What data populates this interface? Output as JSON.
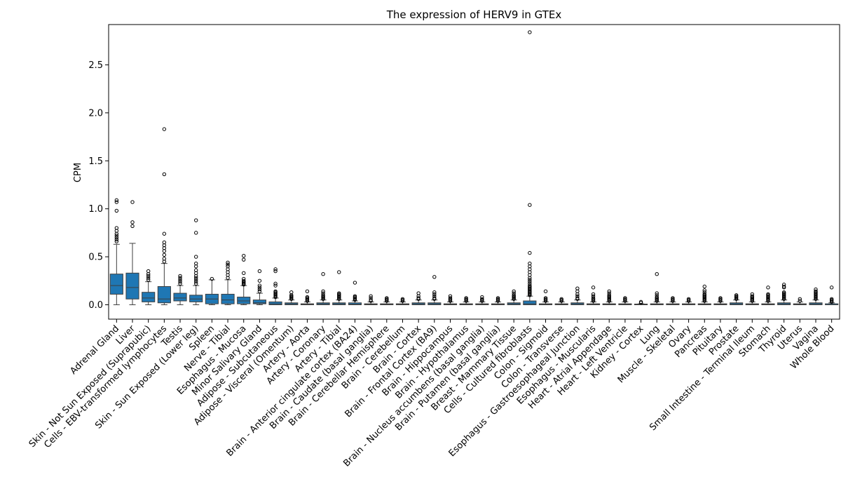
{
  "chart_data": {
    "type": "box",
    "title": "The expression of HERV9 in GTEx",
    "xlabel": "",
    "ylabel": "CPM",
    "ylim": [
      -0.15,
      2.92
    ],
    "yticks": [
      "0.0",
      "0.5",
      "1.0",
      "1.5",
      "2.0",
      "2.5"
    ],
    "yticks_values": [
      0.0,
      0.5,
      1.0,
      1.5,
      2.0,
      2.5
    ],
    "grid": false,
    "box_color": "#1f77b4",
    "categories": [
      "Adrenal Gland",
      "Liver",
      "Skin - Not Sun Exposed (Suprapubic)",
      "Cells - EBV-transformed lymphocytes",
      "Testis",
      "Skin - Sun Exposed (Lower leg)",
      "Spleen",
      "Nerve - Tibial",
      "Esophagus - Mucosa",
      "Minor Salivary Gland",
      "Adipose - Subcutaneous",
      "Adipose - Visceral (Omentum)",
      "Artery - Aorta",
      "Artery - Coronary",
      "Artery - Tibial",
      "Brain - Anterior cingulate cortex (BA24)",
      "Brain - Caudate (basal ganglia)",
      "Brain - Cerebellar Hemisphere",
      "Brain - Cerebellum",
      "Brain - Cortex",
      "Brain - Frontal Cortex (BA9)",
      "Brain - Hippocampus",
      "Brain - Hypothalamus",
      "Brain - Nucleus accumbens (basal ganglia)",
      "Brain - Putamen (basal ganglia)",
      "Breast - Mammary Tissue",
      "Cells - Cultured fibroblasts",
      "Colon - Sigmoid",
      "Colon - Transverse",
      "Esophagus - Gastroesophageal Junction",
      "Esophagus - Muscularis",
      "Heart - Atrial Appendage",
      "Heart - Left Ventricle",
      "Kidney - Cortex",
      "Lung",
      "Muscle - Skeletal",
      "Ovary",
      "Pancreas",
      "Pituitary",
      "Prostate",
      "Small Intestine - Terminal Ileum",
      "Stomach",
      "Thyroid",
      "Uterus",
      "Vagina",
      "Whole Blood"
    ],
    "boxes": [
      {
        "q1": 0.11,
        "median": 0.2,
        "q3": 0.32,
        "whislo": 0.0,
        "whishi": 0.63,
        "fliers": [
          0.66,
          0.68,
          0.7,
          0.72,
          0.74,
          0.77,
          0.8,
          0.98,
          1.07,
          1.09
        ]
      },
      {
        "q1": 0.06,
        "median": 0.18,
        "q3": 0.33,
        "whislo": 0.0,
        "whishi": 0.64,
        "fliers": [
          0.82,
          0.86,
          1.07
        ]
      },
      {
        "q1": 0.03,
        "median": 0.07,
        "q3": 0.13,
        "whislo": 0.0,
        "whishi": 0.24,
        "fliers": [
          0.26,
          0.28,
          0.3,
          0.32,
          0.35
        ]
      },
      {
        "q1": 0.02,
        "median": 0.06,
        "q3": 0.19,
        "whislo": 0.0,
        "whishi": 0.43,
        "fliers": [
          0.45,
          0.48,
          0.52,
          0.56,
          0.59,
          0.62,
          0.65,
          0.74,
          1.36,
          1.83
        ]
      },
      {
        "q1": 0.04,
        "median": 0.07,
        "q3": 0.12,
        "whislo": 0.0,
        "whishi": 0.2,
        "fliers": [
          0.22,
          0.24,
          0.26,
          0.28,
          0.3
        ]
      },
      {
        "q1": 0.03,
        "median": 0.06,
        "q3": 0.1,
        "whislo": 0.0,
        "whishi": 0.2,
        "fliers": [
          0.22,
          0.24,
          0.26,
          0.28,
          0.3,
          0.33,
          0.36,
          0.4,
          0.43,
          0.5,
          0.75,
          0.88
        ]
      },
      {
        "q1": 0.01,
        "median": 0.06,
        "q3": 0.11,
        "whislo": 0.0,
        "whishi": 0.26,
        "fliers": [
          0.27
        ]
      },
      {
        "q1": 0.01,
        "median": 0.05,
        "q3": 0.11,
        "whislo": 0.0,
        "whishi": 0.26,
        "fliers": [
          0.28,
          0.31,
          0.34,
          0.37,
          0.4,
          0.42,
          0.44
        ]
      },
      {
        "q1": 0.01,
        "median": 0.04,
        "q3": 0.08,
        "whislo": 0.0,
        "whishi": 0.2,
        "fliers": [
          0.21,
          0.22,
          0.23,
          0.24,
          0.25,
          0.27,
          0.33,
          0.47,
          0.51
        ]
      },
      {
        "q1": 0.01,
        "median": 0.02,
        "q3": 0.05,
        "whislo": 0.0,
        "whishi": 0.12,
        "fliers": [
          0.14,
          0.16,
          0.18,
          0.2,
          0.25,
          0.35
        ]
      },
      {
        "q1": 0.0,
        "median": 0.01,
        "q3": 0.03,
        "whislo": 0.0,
        "whishi": 0.07,
        "fliers": [
          0.08,
          0.09,
          0.1,
          0.11,
          0.12,
          0.13,
          0.14,
          0.2,
          0.22,
          0.35,
          0.37
        ]
      },
      {
        "q1": 0.0,
        "median": 0.01,
        "q3": 0.02,
        "whislo": 0.0,
        "whishi": 0.05,
        "fliers": [
          0.06,
          0.07,
          0.08,
          0.09,
          0.1,
          0.13
        ]
      },
      {
        "q1": 0.0,
        "median": 0.005,
        "q3": 0.01,
        "whislo": 0.0,
        "whishi": 0.03,
        "fliers": [
          0.04,
          0.05,
          0.06,
          0.07,
          0.08,
          0.14
        ]
      },
      {
        "q1": 0.0,
        "median": 0.01,
        "q3": 0.02,
        "whislo": 0.0,
        "whishi": 0.05,
        "fliers": [
          0.06,
          0.07,
          0.08,
          0.09,
          0.1,
          0.12,
          0.14,
          0.32
        ]
      },
      {
        "q1": 0.0,
        "median": 0.01,
        "q3": 0.02,
        "whislo": 0.0,
        "whishi": 0.05,
        "fliers": [
          0.06,
          0.07,
          0.08,
          0.09,
          0.1,
          0.11,
          0.12,
          0.34
        ]
      },
      {
        "q1": 0.0,
        "median": 0.005,
        "q3": 0.02,
        "whislo": 0.0,
        "whishi": 0.04,
        "fliers": [
          0.05,
          0.06,
          0.07,
          0.08,
          0.09,
          0.23
        ]
      },
      {
        "q1": 0.0,
        "median": 0.005,
        "q3": 0.01,
        "whislo": 0.0,
        "whishi": 0.03,
        "fliers": [
          0.04,
          0.05,
          0.07,
          0.09
        ]
      },
      {
        "q1": 0.0,
        "median": 0.005,
        "q3": 0.01,
        "whislo": 0.0,
        "whishi": 0.03,
        "fliers": [
          0.04,
          0.05,
          0.06,
          0.07
        ]
      },
      {
        "q1": 0.0,
        "median": 0.005,
        "q3": 0.01,
        "whislo": 0.0,
        "whishi": 0.03,
        "fliers": [
          0.04,
          0.05,
          0.06
        ]
      },
      {
        "q1": 0.0,
        "median": 0.01,
        "q3": 0.02,
        "whislo": 0.0,
        "whishi": 0.05,
        "fliers": [
          0.06,
          0.07,
          0.09,
          0.12
        ]
      },
      {
        "q1": 0.0,
        "median": 0.01,
        "q3": 0.02,
        "whislo": 0.0,
        "whishi": 0.05,
        "fliers": [
          0.06,
          0.07,
          0.09,
          0.11,
          0.13,
          0.29
        ]
      },
      {
        "q1": 0.0,
        "median": 0.005,
        "q3": 0.01,
        "whislo": 0.0,
        "whishi": 0.03,
        "fliers": [
          0.04,
          0.05,
          0.06,
          0.07,
          0.09
        ]
      },
      {
        "q1": 0.0,
        "median": 0.005,
        "q3": 0.01,
        "whislo": 0.0,
        "whishi": 0.03,
        "fliers": [
          0.04,
          0.05,
          0.06,
          0.07
        ]
      },
      {
        "q1": 0.0,
        "median": 0.005,
        "q3": 0.01,
        "whislo": 0.0,
        "whishi": 0.03,
        "fliers": [
          0.04,
          0.05,
          0.06,
          0.08
        ]
      },
      {
        "q1": 0.0,
        "median": 0.005,
        "q3": 0.01,
        "whislo": 0.0,
        "whishi": 0.03,
        "fliers": [
          0.04,
          0.05,
          0.06,
          0.07
        ]
      },
      {
        "q1": 0.0,
        "median": 0.01,
        "q3": 0.02,
        "whislo": 0.0,
        "whishi": 0.05,
        "fliers": [
          0.06,
          0.07,
          0.08,
          0.09,
          0.1,
          0.12,
          0.14
        ]
      },
      {
        "q1": 0.0,
        "median": 0.01,
        "q3": 0.04,
        "whislo": 0.0,
        "whishi": 0.09,
        "fliers": [
          0.1,
          0.11,
          0.12,
          0.13,
          0.14,
          0.15,
          0.16,
          0.17,
          0.18,
          0.19,
          0.2,
          0.22,
          0.24,
          0.26,
          0.28,
          0.31,
          0.34,
          0.37,
          0.4,
          0.43,
          0.54,
          1.04,
          2.84
        ]
      },
      {
        "q1": 0.0,
        "median": 0.005,
        "q3": 0.01,
        "whislo": 0.0,
        "whishi": 0.03,
        "fliers": [
          0.04,
          0.05,
          0.06,
          0.07,
          0.14
        ]
      },
      {
        "q1": 0.0,
        "median": 0.005,
        "q3": 0.01,
        "whislo": 0.0,
        "whishi": 0.03,
        "fliers": [
          0.04,
          0.05,
          0.06
        ]
      },
      {
        "q1": 0.0,
        "median": 0.01,
        "q3": 0.02,
        "whislo": 0.0,
        "whishi": 0.05,
        "fliers": [
          0.06,
          0.07,
          0.09,
          0.11,
          0.14,
          0.17
        ]
      },
      {
        "q1": 0.0,
        "median": 0.005,
        "q3": 0.01,
        "whislo": 0.0,
        "whishi": 0.03,
        "fliers": [
          0.04,
          0.05,
          0.06,
          0.07,
          0.09,
          0.11,
          0.18
        ]
      },
      {
        "q1": 0.0,
        "median": 0.005,
        "q3": 0.01,
        "whislo": 0.0,
        "whishi": 0.03,
        "fliers": [
          0.04,
          0.05,
          0.06,
          0.07,
          0.08,
          0.09,
          0.1,
          0.12,
          0.14
        ]
      },
      {
        "q1": 0.0,
        "median": 0.005,
        "q3": 0.01,
        "whislo": 0.0,
        "whishi": 0.03,
        "fliers": [
          0.04,
          0.05,
          0.06,
          0.07
        ]
      },
      {
        "q1": 0.0,
        "median": 0.0,
        "q3": 0.005,
        "whislo": 0.0,
        "whishi": 0.01,
        "fliers": [
          0.02,
          0.03
        ]
      },
      {
        "q1": 0.0,
        "median": 0.005,
        "q3": 0.01,
        "whislo": 0.0,
        "whishi": 0.03,
        "fliers": [
          0.04,
          0.05,
          0.06,
          0.07,
          0.08,
          0.1,
          0.12,
          0.32
        ]
      },
      {
        "q1": 0.0,
        "median": 0.005,
        "q3": 0.01,
        "whislo": 0.0,
        "whishi": 0.03,
        "fliers": [
          0.04,
          0.05,
          0.06,
          0.07
        ]
      },
      {
        "q1": 0.0,
        "median": 0.005,
        "q3": 0.01,
        "whislo": 0.0,
        "whishi": 0.03,
        "fliers": [
          0.04,
          0.05,
          0.06
        ]
      },
      {
        "q1": 0.0,
        "median": 0.005,
        "q3": 0.01,
        "whislo": 0.0,
        "whishi": 0.03,
        "fliers": [
          0.04,
          0.05,
          0.06,
          0.07,
          0.08,
          0.09,
          0.1,
          0.11,
          0.13,
          0.15,
          0.19
        ]
      },
      {
        "q1": 0.0,
        "median": 0.005,
        "q3": 0.01,
        "whislo": 0.0,
        "whishi": 0.03,
        "fliers": [
          0.04,
          0.05,
          0.06,
          0.07
        ]
      },
      {
        "q1": 0.0,
        "median": 0.01,
        "q3": 0.02,
        "whislo": 0.0,
        "whishi": 0.05,
        "fliers": [
          0.06,
          0.07,
          0.08,
          0.09,
          0.1
        ]
      },
      {
        "q1": 0.0,
        "median": 0.005,
        "q3": 0.01,
        "whislo": 0.0,
        "whishi": 0.03,
        "fliers": [
          0.04,
          0.05,
          0.06,
          0.07,
          0.08,
          0.09,
          0.11
        ]
      },
      {
        "q1": 0.0,
        "median": 0.005,
        "q3": 0.01,
        "whislo": 0.0,
        "whishi": 0.03,
        "fliers": [
          0.04,
          0.05,
          0.06,
          0.07,
          0.08,
          0.09,
          0.1,
          0.11,
          0.18
        ]
      },
      {
        "q1": 0.0,
        "median": 0.01,
        "q3": 0.02,
        "whislo": 0.0,
        "whishi": 0.05,
        "fliers": [
          0.06,
          0.07,
          0.08,
          0.09,
          0.1,
          0.11,
          0.12,
          0.13,
          0.18,
          0.19,
          0.21
        ]
      },
      {
        "q1": 0.0,
        "median": 0.005,
        "q3": 0.01,
        "whislo": 0.0,
        "whishi": 0.03,
        "fliers": [
          0.04,
          0.06
        ]
      },
      {
        "q1": 0.0,
        "median": 0.01,
        "q3": 0.02,
        "whislo": 0.0,
        "whishi": 0.05,
        "fliers": [
          0.06,
          0.07,
          0.08,
          0.09,
          0.1,
          0.11,
          0.12,
          0.13,
          0.14,
          0.16
        ]
      },
      {
        "q1": 0.0,
        "median": 0.0,
        "q3": 0.01,
        "whislo": 0.0,
        "whishi": 0.02,
        "fliers": [
          0.03,
          0.04,
          0.05,
          0.06,
          0.18
        ]
      }
    ]
  }
}
